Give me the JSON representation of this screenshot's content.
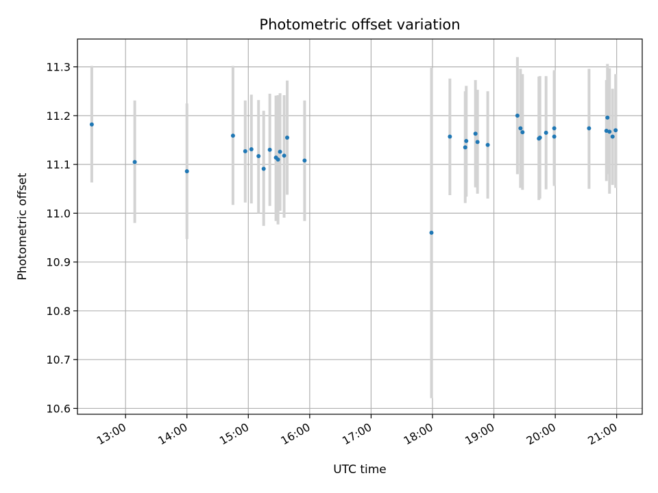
{
  "chart_data": {
    "type": "scatter",
    "title": "Photometric offset variation",
    "xlabel": "UTC time",
    "ylabel": "Photometric offset",
    "x_unit": "UTC time (HH:MM)",
    "xlim": [
      "12:13",
      "21:25"
    ],
    "ylim": [
      10.588,
      11.357
    ],
    "x_ticks": [
      "13:00",
      "14:00",
      "15:00",
      "16:00",
      "17:00",
      "18:00",
      "19:00",
      "20:00",
      "21:00"
    ],
    "y_ticks": [
      "10.6",
      "10.7",
      "10.8",
      "10.9",
      "11.0",
      "11.1",
      "11.2",
      "11.3"
    ],
    "grid": true,
    "colors": {
      "point": "#1f77b4",
      "errorbar": "#d3d3d3",
      "grid": "#b0b0b0"
    },
    "points": [
      {
        "x": "12:27",
        "y": 11.182,
        "ylow": 11.063,
        "yhigh": 11.302
      },
      {
        "x": "13:09",
        "y": 11.105,
        "ylow": 10.98,
        "yhigh": 11.231
      },
      {
        "x": "14:00",
        "y": 11.086,
        "ylow": 10.947,
        "yhigh": 11.225
      },
      {
        "x": "14:45",
        "y": 11.159,
        "ylow": 11.017,
        "yhigh": 11.302
      },
      {
        "x": "14:57",
        "y": 11.127,
        "ylow": 11.022,
        "yhigh": 11.231
      },
      {
        "x": "15:03",
        "y": 11.131,
        "ylow": 11.02,
        "yhigh": 11.243
      },
      {
        "x": "15:10",
        "y": 11.117,
        "ylow": 11.0,
        "yhigh": 11.232
      },
      {
        "x": "15:15",
        "y": 11.091,
        "ylow": 10.974,
        "yhigh": 11.21
      },
      {
        "x": "15:21",
        "y": 11.13,
        "ylow": 11.015,
        "yhigh": 11.245
      },
      {
        "x": "15:27",
        "y": 11.114,
        "ylow": 10.984,
        "yhigh": 11.241
      },
      {
        "x": "15:29",
        "y": 11.11,
        "ylow": 10.977,
        "yhigh": 11.242
      },
      {
        "x": "15:31",
        "y": 11.126,
        "ylow": 11.005,
        "yhigh": 11.246
      },
      {
        "x": "15:35",
        "y": 11.118,
        "ylow": 10.991,
        "yhigh": 11.242
      },
      {
        "x": "15:38",
        "y": 11.155,
        "ylow": 11.038,
        "yhigh": 11.272
      },
      {
        "x": "15:55",
        "y": 11.108,
        "ylow": 10.984,
        "yhigh": 11.231
      },
      {
        "x": "17:59",
        "y": 10.96,
        "ylow": 10.621,
        "yhigh": 11.298
      },
      {
        "x": "18:17",
        "y": 11.157,
        "ylow": 11.037,
        "yhigh": 11.276
      },
      {
        "x": "18:32",
        "y": 11.135,
        "ylow": 11.021,
        "yhigh": 11.25
      },
      {
        "x": "18:33",
        "y": 11.148,
        "ylow": 11.034,
        "yhigh": 11.261
      },
      {
        "x": "18:42",
        "y": 11.163,
        "ylow": 11.053,
        "yhigh": 11.273
      },
      {
        "x": "18:44",
        "y": 11.146,
        "ylow": 11.04,
        "yhigh": 11.253
      },
      {
        "x": "18:54",
        "y": 11.14,
        "ylow": 11.03,
        "yhigh": 11.25
      },
      {
        "x": "19:23",
        "y": 11.2,
        "ylow": 11.08,
        "yhigh": 11.32
      },
      {
        "x": "19:26",
        "y": 11.174,
        "ylow": 11.052,
        "yhigh": 11.296
      },
      {
        "x": "19:28",
        "y": 11.166,
        "ylow": 11.048,
        "yhigh": 11.285
      },
      {
        "x": "19:44",
        "y": 11.153,
        "ylow": 11.027,
        "yhigh": 11.28
      },
      {
        "x": "19:45",
        "y": 11.155,
        "ylow": 11.03,
        "yhigh": 11.281
      },
      {
        "x": "19:51",
        "y": 11.165,
        "ylow": 11.049,
        "yhigh": 11.281
      },
      {
        "x": "19:59",
        "y": 11.174,
        "ylow": 11.056,
        "yhigh": 11.293
      },
      {
        "x": "19:59",
        "y": 11.157,
        "ylow": 11.06,
        "yhigh": 11.29
      },
      {
        "x": "20:33",
        "y": 11.174,
        "ylow": 11.05,
        "yhigh": 11.296
      },
      {
        "x": "20:50",
        "y": 11.169,
        "ylow": 11.066,
        "yhigh": 11.273
      },
      {
        "x": "20:51",
        "y": 11.196,
        "ylow": 11.08,
        "yhigh": 11.306
      },
      {
        "x": "20:53",
        "y": 11.167,
        "ylow": 11.04,
        "yhigh": 11.297
      },
      {
        "x": "20:56",
        "y": 11.157,
        "ylow": 11.058,
        "yhigh": 11.255
      },
      {
        "x": "20:59",
        "y": 11.17,
        "ylow": 11.052,
        "yhigh": 11.285
      }
    ]
  }
}
